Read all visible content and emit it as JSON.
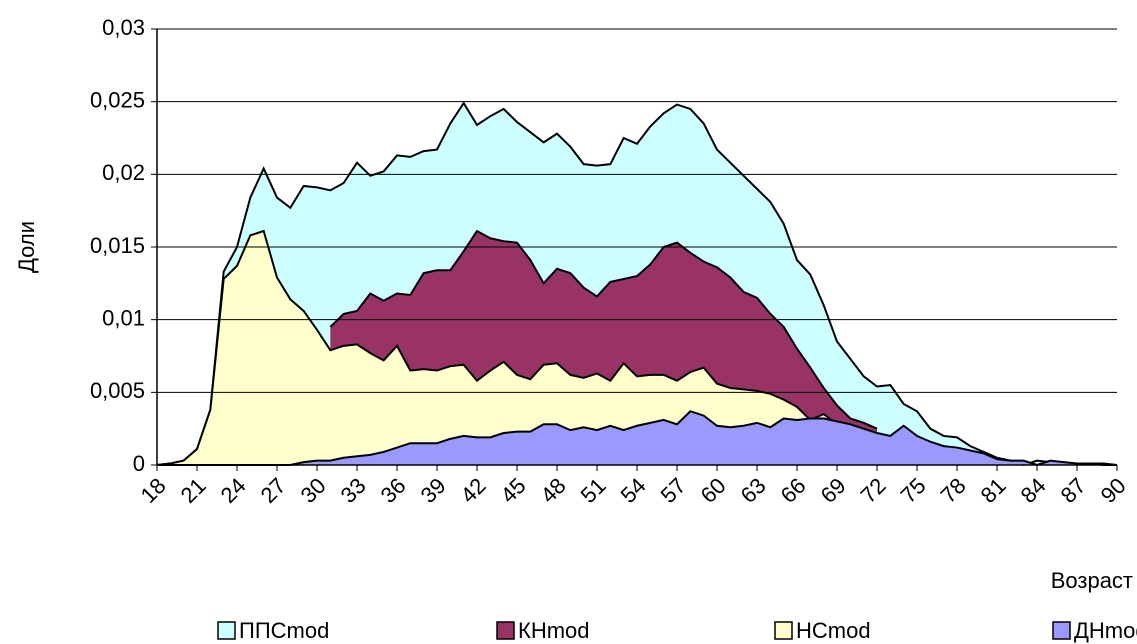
{
  "chart_data": {
    "type": "area",
    "x": [
      18,
      19,
      20,
      21,
      22,
      23,
      24,
      25,
      26,
      27,
      28,
      29,
      30,
      31,
      32,
      33,
      34,
      35,
      36,
      37,
      38,
      39,
      40,
      41,
      42,
      43,
      44,
      45,
      46,
      47,
      48,
      49,
      50,
      51,
      52,
      53,
      54,
      55,
      56,
      57,
      58,
      59,
      60,
      61,
      62,
      63,
      64,
      65,
      66,
      67,
      68,
      69,
      70,
      71,
      72,
      73,
      74,
      75,
      76,
      77,
      78,
      79,
      80,
      81,
      82,
      83,
      84,
      85,
      86,
      87,
      88,
      89,
      90
    ],
    "xlim": [
      18,
      90
    ],
    "xticks": [
      18,
      21,
      24,
      27,
      30,
      33,
      36,
      39,
      42,
      45,
      48,
      51,
      54,
      57,
      60,
      63,
      66,
      69,
      72,
      75,
      78,
      81,
      84,
      87,
      90
    ],
    "ylim": [
      0,
      0.03
    ],
    "yticks": [
      0,
      {
        "value": 0.005,
        "label": "0,005"
      },
      {
        "value": 0.01,
        "label": "0,01"
      },
      {
        "value": 0.015,
        "label": "0,015"
      },
      {
        "value": 0.02,
        "label": "0,02"
      },
      {
        "value": 0.025,
        "label": "0,025"
      },
      {
        "value": 0.03,
        "label": "0,03"
      }
    ],
    "ylabel": "Доли",
    "xlabel": "Возраст",
    "grid": true,
    "legend": "bottom",
    "series": [
      {
        "name": "ППСmod",
        "color": "#ccffff",
        "values": [
          0,
          0.0001,
          0.0003,
          0.0011,
          0.0038,
          0.0133,
          0.015,
          0.0184,
          0.0204,
          0.0184,
          0.0177,
          0.0192,
          0.0191,
          0.0189,
          0.0194,
          0.0208,
          0.0199,
          0.0202,
          0.0213,
          0.0212,
          0.0216,
          0.0217,
          0.0235,
          0.0249,
          0.0234,
          0.024,
          0.0245,
          0.0236,
          0.0229,
          0.0222,
          0.0228,
          0.0219,
          0.0207,
          0.0206,
          0.0207,
          0.0225,
          0.0221,
          0.0233,
          0.0242,
          0.0248,
          0.0245,
          0.0235,
          0.0217,
          0.0208,
          0.0199,
          0.019,
          0.0181,
          0.0166,
          0.0141,
          0.0131,
          0.011,
          0.0085,
          0.0073,
          0.0061,
          0.0054,
          0.0055,
          0.0042,
          0.0037,
          0.0025,
          0.002,
          0.0019,
          0.0013,
          0.0009,
          0.0005,
          0.0003,
          0,
          0.0003,
          0.0002,
          0.0001,
          0.0001,
          0.0001,
          0,
          0
        ]
      },
      {
        "name": "КНmod",
        "color": "#993366",
        "values": [
          null,
          null,
          null,
          null,
          null,
          null,
          null,
          null,
          null,
          null,
          null,
          null,
          null,
          0.0095,
          0.0104,
          0.0106,
          0.0118,
          0.0113,
          0.0118,
          0.0117,
          0.0132,
          0.0134,
          0.0134,
          0.0147,
          0.0161,
          0.0156,
          0.0154,
          0.0153,
          0.0141,
          0.0125,
          0.0135,
          0.0132,
          0.0122,
          0.0116,
          0.0126,
          0.0128,
          0.013,
          0.0138,
          0.015,
          0.0153,
          0.0146,
          0.014,
          0.0136,
          0.0129,
          0.0119,
          0.0115,
          0.0104,
          0.0095,
          0.008,
          0.0067,
          0.0053,
          0.0041,
          0.0032,
          0.0029,
          0.0025,
          null,
          null,
          null,
          null,
          null,
          null,
          null,
          null,
          null,
          null,
          null,
          null,
          null,
          null,
          null,
          null,
          null,
          null
        ]
      },
      {
        "name": "НСmod",
        "color": "#ffffcc",
        "values": [
          0,
          0.0001,
          0.0003,
          0.0011,
          0.0038,
          0.0128,
          0.0137,
          0.0158,
          0.0161,
          0.0129,
          0.0114,
          0.0106,
          0.0093,
          0.0079,
          0.0082,
          0.0083,
          0.0077,
          0.0072,
          0.0082,
          0.0065,
          0.0066,
          0.0065,
          0.0068,
          0.0069,
          0.0058,
          0.0065,
          0.0071,
          0.0062,
          0.0059,
          0.0069,
          0.007,
          0.0062,
          0.006,
          0.0063,
          0.0058,
          0.007,
          0.0061,
          0.0062,
          0.0062,
          0.0058,
          0.0064,
          0.0067,
          0.0056,
          0.0053,
          0.0052,
          0.0051,
          0.0049,
          0.0045,
          0.004,
          0.0031,
          0.0035,
          0.0028,
          null,
          null,
          null,
          null,
          null,
          null,
          null,
          null,
          null,
          null,
          null,
          null,
          null,
          null,
          null,
          null,
          null,
          null,
          null,
          null,
          null
        ]
      },
      {
        "name": "ДНmod",
        "color": "#9999ff",
        "values": [
          0,
          0,
          0,
          0,
          0,
          0,
          0,
          0,
          0,
          0,
          0,
          0.0002,
          0.0003,
          0.0003,
          0.0005,
          0.0006,
          0.0007,
          0.0009,
          0.0012,
          0.0015,
          0.0015,
          0.0015,
          0.0018,
          0.002,
          0.0019,
          0.0019,
          0.0022,
          0.0023,
          0.0023,
          0.0028,
          0.0028,
          0.0024,
          0.0026,
          0.0024,
          0.0027,
          0.0024,
          0.0027,
          0.0029,
          0.0031,
          0.0028,
          0.0037,
          0.0034,
          0.0027,
          0.0026,
          0.0027,
          0.0029,
          0.0026,
          0.0032,
          0.0031,
          0.0032,
          0.0032,
          0.003,
          0.0028,
          0.0025,
          0.0022,
          0.002,
          0.0027,
          0.002,
          0.0016,
          0.0013,
          0.0012,
          0.001,
          0.0008,
          0.0004,
          0.0003,
          0.0003,
          0,
          0.0003,
          0.0002,
          0.0001,
          0.0001,
          0.0001,
          0
        ]
      }
    ]
  }
}
